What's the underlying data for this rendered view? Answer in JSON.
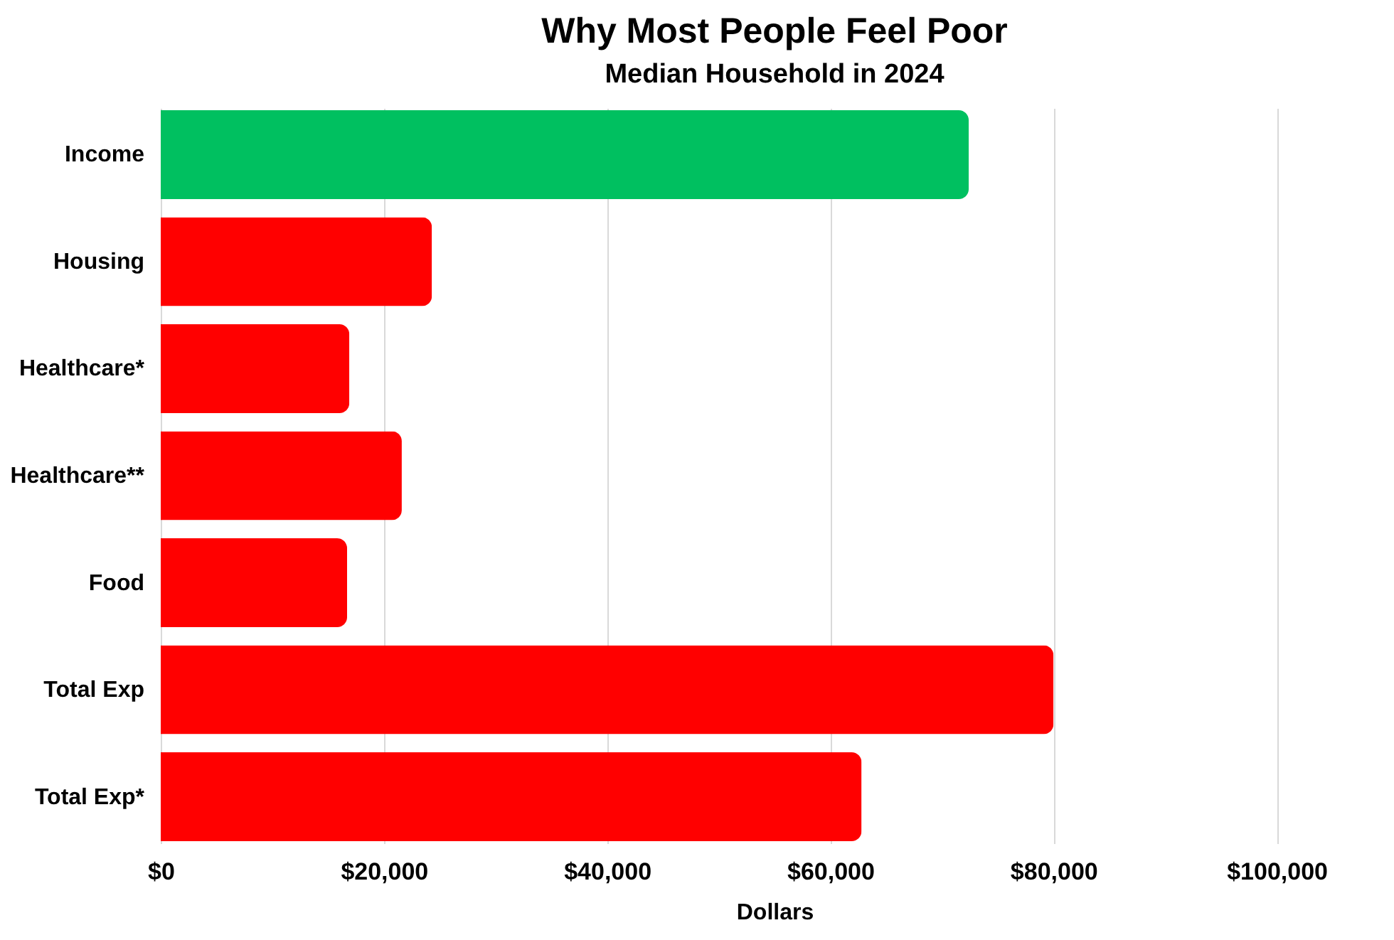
{
  "chart_data": {
    "type": "bar",
    "orientation": "horizontal",
    "title": "Why Most People Feel Poor",
    "subtitle": "Median Household in 2024",
    "xlabel": "Dollars",
    "categories": [
      "Income",
      "Housing",
      "Healthcare*",
      "Healthcare**",
      "Food",
      "Total Exp",
      "Total Exp*"
    ],
    "values": [
      72400,
      24300,
      16900,
      21600,
      16700,
      80000,
      62800
    ],
    "colors": [
      "#00c060",
      "#ff0000",
      "#ff0000",
      "#ff0000",
      "#ff0000",
      "#ff0000",
      "#ff0000"
    ],
    "xlim": [
      0,
      110000
    ],
    "xticks": [
      {
        "value": 0,
        "label": "$0"
      },
      {
        "value": 20000,
        "label": "$20,000"
      },
      {
        "value": 40000,
        "label": "$40,000"
      },
      {
        "value": 60000,
        "label": "$60,000"
      },
      {
        "value": 80000,
        "label": "$80,000"
      },
      {
        "value": 100000,
        "label": "$100,000"
      }
    ],
    "grid": "x"
  }
}
